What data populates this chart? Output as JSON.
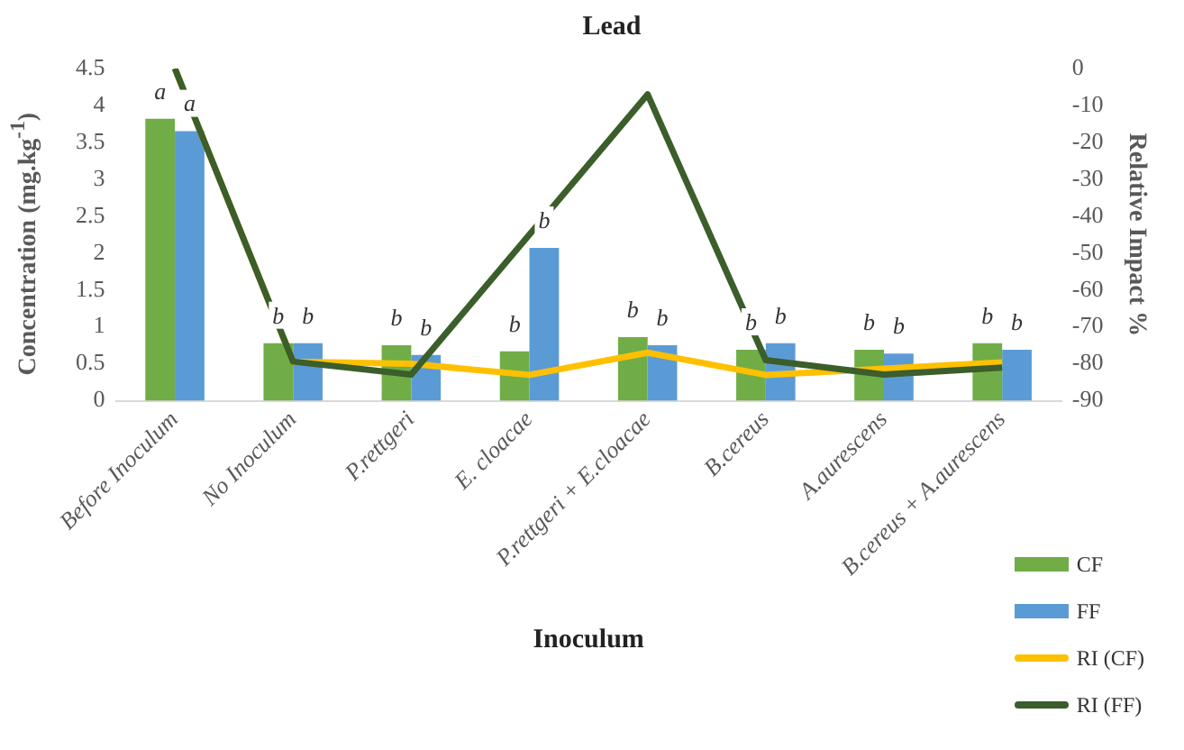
{
  "chart_data": {
    "type": "bar",
    "title": "Lead",
    "xlabel": "Inoculum",
    "ylabel": "Concentration (mg.kg$^{-1}$)",
    "y2label": "Relative Impact %",
    "categories": [
      "Before Inoculum",
      "No Inoculum",
      "P.rettgeri",
      "E. cloacae",
      "P.rettgeri + E.cloacae",
      "B.cereus",
      "A.aurescens",
      "B.cereus + A.aurescens"
    ],
    "series": [
      {
        "name": "CF",
        "color": "#70ad47",
        "values": [
          3.82,
          0.78,
          0.75,
          0.67,
          0.86,
          0.69,
          0.69,
          0.78
        ],
        "value_labels": [
          "a",
          "b",
          "b",
          "b",
          "b",
          "b",
          "b",
          "b"
        ]
      },
      {
        "name": "FF",
        "color": "#5b9bd5",
        "values": [
          3.65,
          0.78,
          0.62,
          2.07,
          0.75,
          0.78,
          0.64,
          0.69
        ],
        "value_labels": [
          "a",
          "b",
          "b",
          "b",
          "b",
          "b",
          "b",
          "b"
        ]
      },
      {
        "name": "RI (CF)",
        "type": "line",
        "axis": "y2",
        "color": "#ffc000",
        "values": [
          0,
          -79.4,
          -80,
          -83,
          -77,
          -83,
          -81.3,
          -79.6
        ]
      },
      {
        "name": "RI (FF)",
        "type": "line",
        "axis": "y2",
        "color": "#3b5e2b",
        "values": [
          0,
          -79.4,
          -82.9,
          -45,
          -7,
          -79,
          -82.9,
          -81
        ]
      }
    ],
    "ylim": [
      0,
      4.5
    ],
    "yticks": [
      0,
      0.5,
      1,
      1.5,
      2,
      2.5,
      3,
      3.5,
      4,
      4.5
    ],
    "y2lim": [
      -90,
      0
    ],
    "y2ticks": [
      -90,
      -80,
      -70,
      -60,
      -50,
      -40,
      -30,
      -20,
      -10,
      0
    ],
    "grid": false,
    "legend": "bottom right",
    "marker": "none",
    "line_style": "solid"
  }
}
